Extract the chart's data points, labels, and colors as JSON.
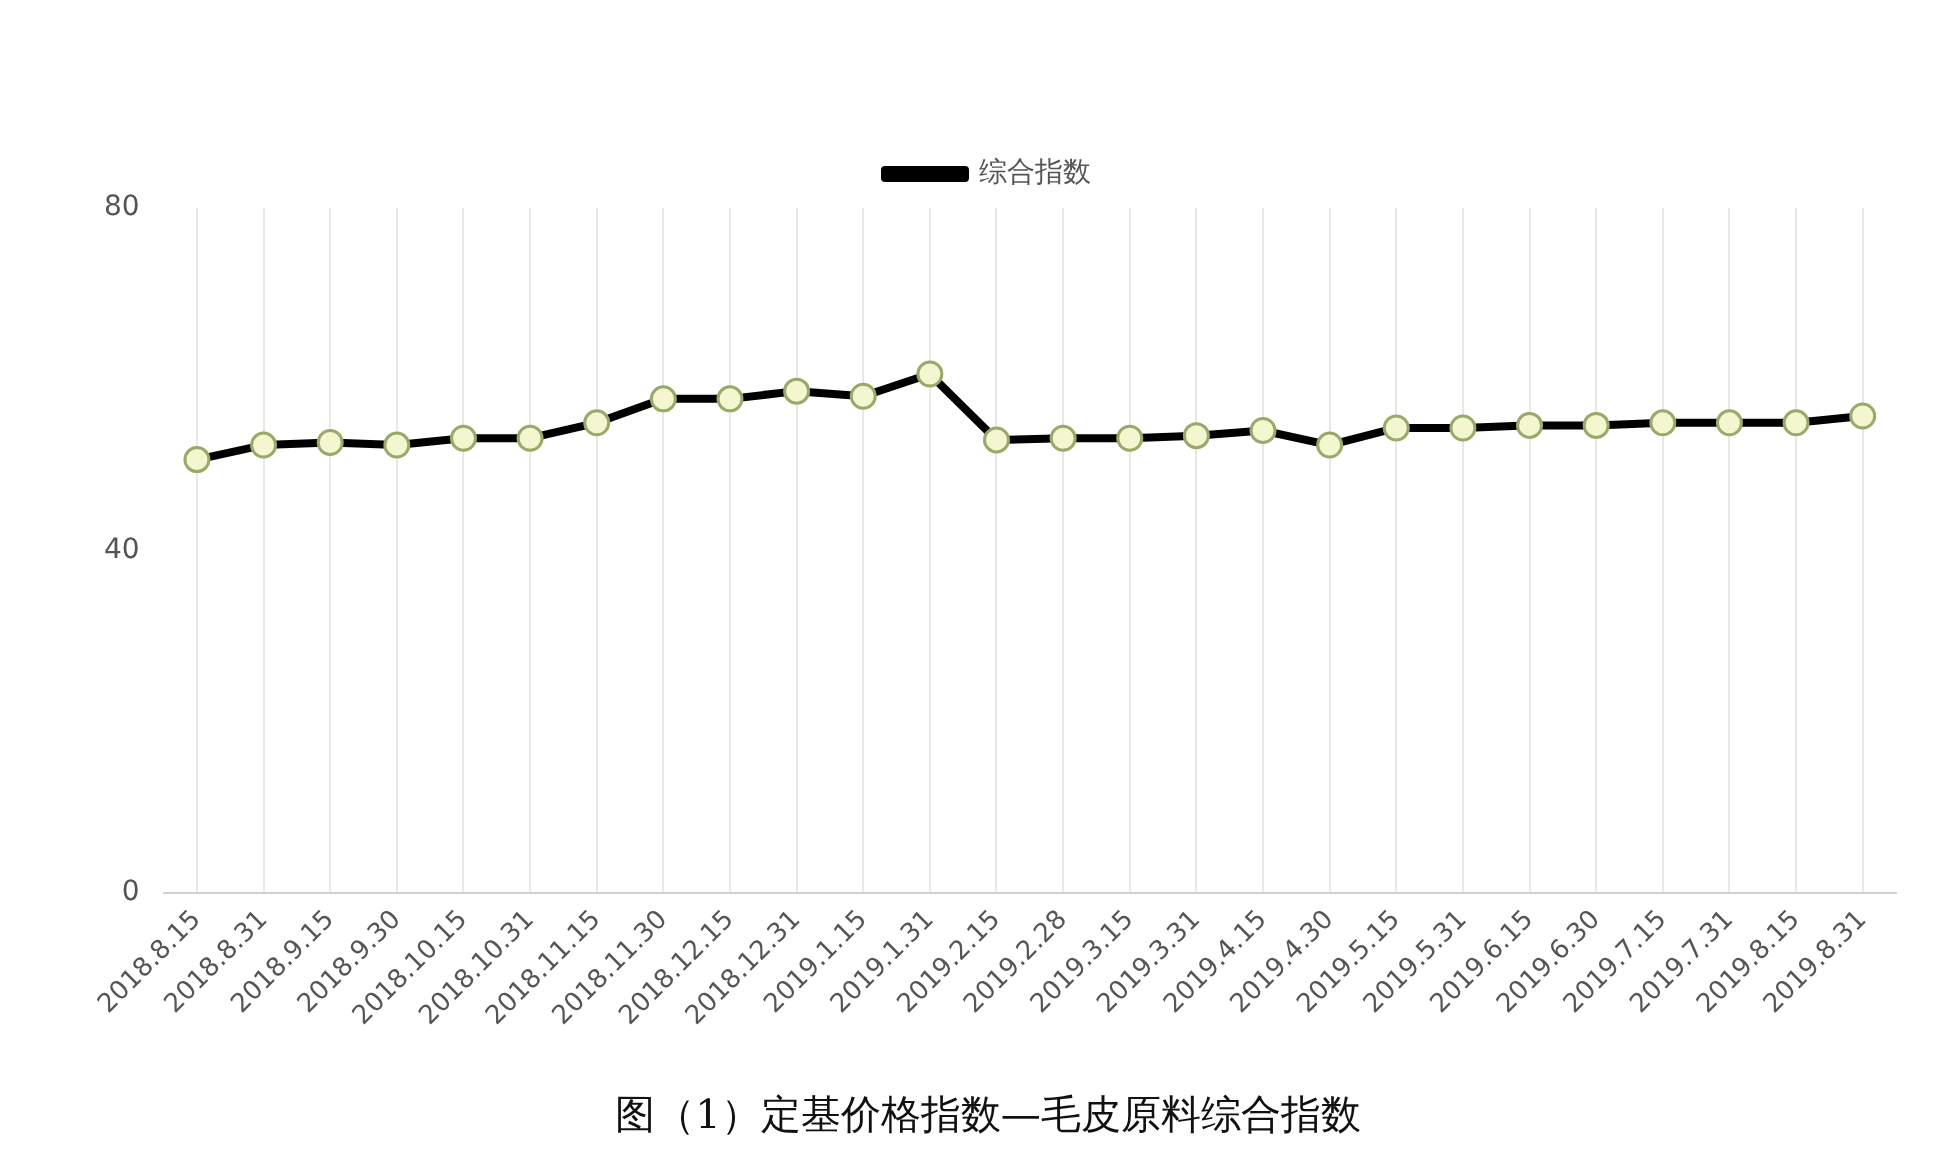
{
  "chart_data": {
    "type": "line",
    "title": "图（1）定基价格指数—毛皮原料综合指数",
    "categories": [
      "2018.8.15",
      "2018.8.31",
      "2018.9.15",
      "2018.9.30",
      "2018.10.15",
      "2018.10.31",
      "2018.11.15",
      "2018.11.30",
      "2018.12.15",
      "2018.12.31",
      "2019.1.15",
      "2019.1.31",
      "2019.2.15",
      "2019.2.28",
      "2019.3.15",
      "2019.3.31",
      "2019.4.15",
      "2019.4.30",
      "2019.5.15",
      "2019.5.31",
      "2019.6.15",
      "2019.6.30",
      "2019.7.15",
      "2019.7.31",
      "2019.8.15",
      "2019.8.31"
    ],
    "series": [
      {
        "name": "综合指数",
        "color": "#000000",
        "values": [
          50.6,
          52.3,
          52.6,
          52.3,
          53.1,
          53.1,
          54.9,
          57.7,
          57.7,
          58.6,
          58,
          60.6,
          52.9,
          53.1,
          53.1,
          53.4,
          54,
          52.3,
          54.3,
          54.3,
          54.6,
          54.6,
          54.9,
          54.9,
          54.9,
          55.7
        ]
      }
    ],
    "ylim": [
      0,
      80
    ],
    "yticks": [
      0,
      40,
      80
    ],
    "grid": "x",
    "legend": "top",
    "marker": "circle",
    "line_style": "solid"
  }
}
